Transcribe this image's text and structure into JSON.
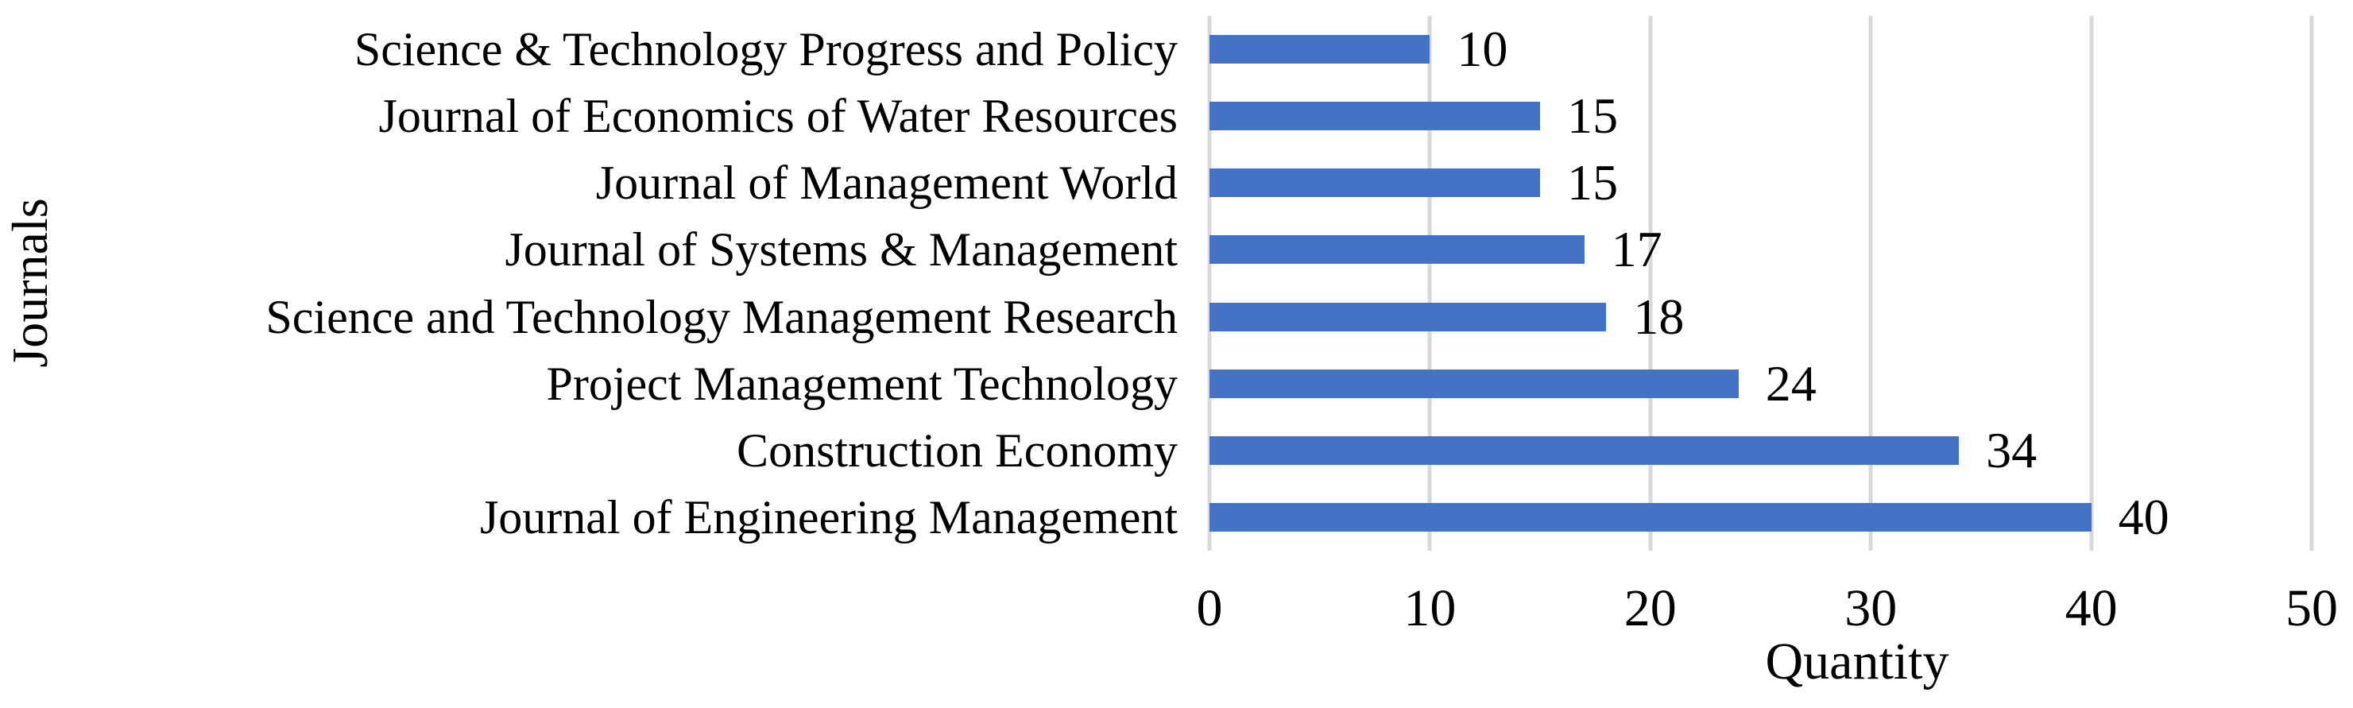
{
  "chart_data": {
    "type": "bar",
    "orientation": "horizontal",
    "title": "",
    "xlabel": "Quantity",
    "ylabel": "Journals",
    "xlim": [
      0,
      50
    ],
    "xticks": [
      0,
      10,
      20,
      30,
      40,
      50
    ],
    "grid": true,
    "legend_position": "none",
    "bar_color": "#4472C4",
    "gridline_color": "#D9D9D9",
    "text_color": "#000000",
    "value_labels_shown": true,
    "categories": [
      "Science & Technology Progress and Policy",
      "Journal of Economics of Water Resources",
      "Journal of Management World",
      "Journal of Systems & Management",
      "Science and Technology Management Research",
      "Project Management Technology",
      "Construction Economy",
      "Journal of Engineering Management"
    ],
    "values": [
      10,
      15,
      15,
      17,
      18,
      24,
      34,
      40
    ]
  }
}
